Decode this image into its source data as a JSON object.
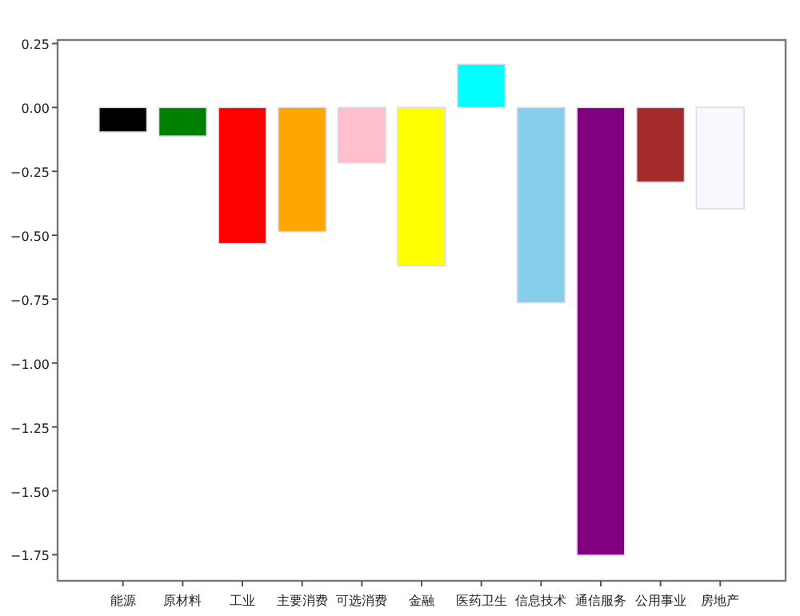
{
  "chart_data": {
    "type": "bar",
    "categories": [
      "能源",
      "原材料",
      "工业",
      "主要消费",
      "可选消费",
      "金融",
      "医药卫生",
      "信息技术",
      "通信服务",
      "公用事业",
      "房地产"
    ],
    "values": [
      -0.096,
      -0.112,
      -0.533,
      -0.486,
      -0.217,
      -0.619,
      0.169,
      -0.764,
      -1.752,
      -0.292,
      -0.396
    ],
    "colors": [
      "#000000",
      "#008000",
      "#ff0000",
      "#ffa500",
      "#ffc0cb",
      "#ffff00",
      "#00ffff",
      "#87ceeb",
      "#800080",
      "#a52a2a",
      "#f8f8ff"
    ],
    "ylim": [
      -1.852,
      0.264
    ],
    "yticks": [
      {
        "value": -1.75,
        "label": "−1.75"
      },
      {
        "value": -1.5,
        "label": "−1.50"
      },
      {
        "value": -1.25,
        "label": "−1.25"
      },
      {
        "value": -1.0,
        "label": "−1.00"
      },
      {
        "value": -0.75,
        "label": "−0.75"
      },
      {
        "value": -0.5,
        "label": "−0.50"
      },
      {
        "value": -0.25,
        "label": "−0.25"
      },
      {
        "value": 0,
        "label": "0.00"
      },
      {
        "value": 0.25,
        "label": "0.25"
      }
    ],
    "grid": false
  }
}
